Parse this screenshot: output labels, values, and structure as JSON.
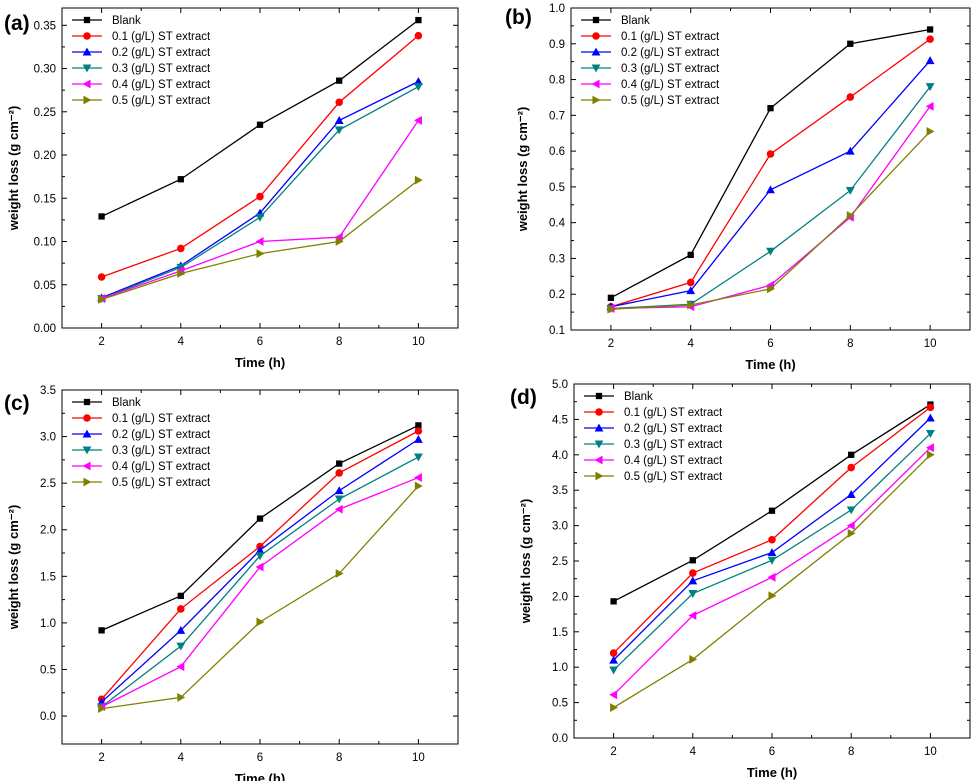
{
  "series_styles": [
    {
      "name": "Blank",
      "color": "#000000",
      "marker": "square"
    },
    {
      "name": "0.1 (g/L) ST extract",
      "color": "#ff0000",
      "marker": "circle"
    },
    {
      "name": "0.2 (g/L) ST extract",
      "color": "#0000ff",
      "marker": "triangle-up"
    },
    {
      "name": "0.3 (g/L) ST extract",
      "color": "#008080",
      "marker": "triangle-down"
    },
    {
      "name": "0.4 (g/L) ST extract",
      "color": "#ff00ff",
      "marker": "triangle-left"
    },
    {
      "name": "0.5 (g/L) ST extract",
      "color": "#808000",
      "marker": "triangle-right"
    }
  ],
  "chart_data": [
    {
      "panel": "(a)",
      "type": "line",
      "xlabel": "Time (h)",
      "ylabel": "weight loss (g cm⁻²)",
      "x": [
        2,
        4,
        6,
        8,
        10
      ],
      "xlim": [
        1,
        11
      ],
      "ylim": [
        0,
        0.37
      ],
      "yticks": [
        0.0,
        0.05,
        0.1,
        0.15,
        0.2,
        0.25,
        0.3,
        0.35
      ],
      "ytick_decimals": 2,
      "legend": "top-left",
      "series": [
        {
          "name": "Blank",
          "values": [
            0.129,
            0.172,
            0.235,
            0.286,
            0.356
          ]
        },
        {
          "name": "0.1 (g/L) ST extract",
          "values": [
            0.059,
            0.092,
            0.152,
            0.261,
            0.338
          ]
        },
        {
          "name": "0.2 (g/L) ST extract",
          "values": [
            0.035,
            0.072,
            0.133,
            0.24,
            0.285
          ]
        },
        {
          "name": "0.3 (g/L) ST extract",
          "values": [
            0.034,
            0.07,
            0.128,
            0.229,
            0.279
          ]
        },
        {
          "name": "0.4 (g/L) ST extract",
          "values": [
            0.034,
            0.066,
            0.1,
            0.105,
            0.24
          ]
        },
        {
          "name": "0.5 (g/L) ST extract",
          "values": [
            0.033,
            0.063,
            0.086,
            0.1,
            0.171
          ]
        }
      ]
    },
    {
      "panel": "(b)",
      "type": "line",
      "xlabel": "Time (h)",
      "ylabel": "weight loss (g cm⁻²)",
      "x": [
        2,
        4,
        6,
        8,
        10
      ],
      "xlim": [
        1,
        11
      ],
      "ylim": [
        0.1,
        1.0
      ],
      "yticks": [
        0.1,
        0.2,
        0.3,
        0.4,
        0.5,
        0.6,
        0.7,
        0.8,
        0.9,
        1.0
      ],
      "ytick_decimals": 1,
      "legend": "top-left",
      "series": [
        {
          "name": "Blank",
          "values": [
            0.19,
            0.31,
            0.72,
            0.9,
            0.94
          ]
        },
        {
          "name": "0.1 (g/L) ST extract",
          "values": [
            0.165,
            0.233,
            0.592,
            0.751,
            0.913
          ]
        },
        {
          "name": "0.2 (g/L) ST extract",
          "values": [
            0.165,
            0.21,
            0.492,
            0.6,
            0.853
          ]
        },
        {
          "name": "0.3 (g/L) ST extract",
          "values": [
            0.16,
            0.172,
            0.32,
            0.49,
            0.78
          ]
        },
        {
          "name": "0.4 (g/L) ST extract",
          "values": [
            0.16,
            0.165,
            0.225,
            0.415,
            0.725
          ]
        },
        {
          "name": "0.5 (g/L) ST extract",
          "values": [
            0.158,
            0.17,
            0.215,
            0.42,
            0.655
          ]
        }
      ]
    },
    {
      "panel": "(c)",
      "type": "line",
      "xlabel": "Time (h)",
      "ylabel": "weight loss (g cm⁻²)",
      "x": [
        2,
        4,
        6,
        8,
        10
      ],
      "xlim": [
        1,
        11
      ],
      "ylim": [
        -0.3,
        3.5
      ],
      "yticks": [
        0.0,
        0.5,
        1.0,
        1.5,
        2.0,
        2.5,
        3.0,
        3.5
      ],
      "ytick_decimals": 1,
      "legend": "top-left",
      "series": [
        {
          "name": "Blank",
          "values": [
            0.92,
            1.29,
            2.12,
            2.71,
            3.12
          ]
        },
        {
          "name": "0.1 (g/L) ST extract",
          "values": [
            0.18,
            1.15,
            1.82,
            2.61,
            3.06
          ]
        },
        {
          "name": "0.2 (g/L) ST extract",
          "values": [
            0.15,
            0.92,
            1.78,
            2.42,
            2.97
          ]
        },
        {
          "name": "0.3 (g/L) ST extract",
          "values": [
            0.1,
            0.75,
            1.72,
            2.33,
            2.78
          ]
        },
        {
          "name": "0.4 (g/L) ST extract",
          "values": [
            0.1,
            0.53,
            1.6,
            2.22,
            2.56
          ]
        },
        {
          "name": "0.5 (g/L) ST extract",
          "values": [
            0.08,
            0.2,
            1.01,
            1.53,
            2.47
          ]
        }
      ]
    },
    {
      "panel": "(d)",
      "type": "line",
      "xlabel": "Time (h)",
      "ylabel": "weight loss (g cm⁻²)",
      "x": [
        2,
        4,
        6,
        8,
        10
      ],
      "xlim": [
        1,
        11
      ],
      "ylim": [
        0,
        5.0
      ],
      "yticks": [
        0.0,
        0.5,
        1.0,
        1.5,
        2.0,
        2.5,
        3.0,
        3.5,
        4.0,
        4.5,
        5.0
      ],
      "ytick_decimals": 1,
      "legend": "top-left",
      "series": [
        {
          "name": "Blank",
          "values": [
            1.93,
            2.51,
            3.21,
            4.0,
            4.71
          ]
        },
        {
          "name": "0.1 (g/L) ST extract",
          "values": [
            1.2,
            2.33,
            2.8,
            3.82,
            4.67
          ]
        },
        {
          "name": "0.2 (g/L) ST extract",
          "values": [
            1.1,
            2.22,
            2.62,
            3.44,
            4.52
          ]
        },
        {
          "name": "0.3 (g/L) ST extract",
          "values": [
            0.96,
            2.04,
            2.51,
            3.22,
            4.3
          ]
        },
        {
          "name": "0.4 (g/L) ST extract",
          "values": [
            0.61,
            1.73,
            2.27,
            3.0,
            4.1
          ]
        },
        {
          "name": "0.5 (g/L) ST extract",
          "values": [
            0.43,
            1.11,
            2.01,
            2.89,
            4.0
          ]
        }
      ]
    }
  ]
}
